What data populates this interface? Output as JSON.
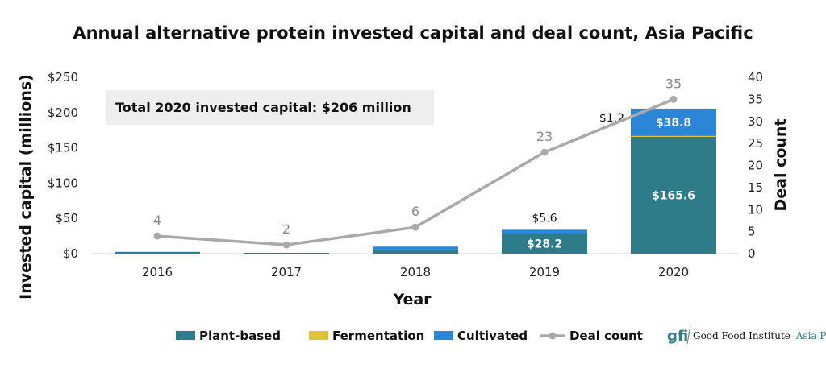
{
  "colors": {
    "plant_based": "#2e7b8a",
    "fermentation": "#e2c23a",
    "cultivated": "#2c86d6",
    "deal_count": "#a9a9a9",
    "annotation_bg": "#eeeeee"
  },
  "chart_data": {
    "type": "bar",
    "title": "Annual alternative protein invested capital and deal count, Asia Pacific",
    "xlabel": "Year",
    "ylabel": "Invested capital (millions)",
    "y2label": "Deal count",
    "categories": [
      "2016",
      "2017",
      "2018",
      "2019",
      "2020"
    ],
    "ylim": [
      0,
      250
    ],
    "y2lim": [
      0,
      40
    ],
    "yticks": [
      "$0",
      "$50",
      "$100",
      "$150",
      "$200",
      "$250"
    ],
    "y2ticks": [
      "0",
      "5",
      "10",
      "15",
      "20",
      "25",
      "30",
      "35",
      "40"
    ],
    "stacked": true,
    "series": [
      {
        "name": "Plant-based",
        "values": [
          2.5,
          1.2,
          6.5,
          28.2,
          165.6
        ],
        "labels": [
          "",
          "",
          "",
          "$28.2",
          "$165.6"
        ],
        "label_position": "inside"
      },
      {
        "name": "Fermentation",
        "values": [
          0,
          0,
          0,
          0,
          1.2
        ],
        "labels": [
          "",
          "",
          "",
          "",
          "$1.2"
        ],
        "label_position": "outside-left"
      },
      {
        "name": "Cultivated",
        "values": [
          0,
          0,
          3.5,
          5.6,
          38.8
        ],
        "labels": [
          "",
          "",
          "",
          "$5.6",
          "$38.8"
        ],
        "label_position": "inside-or-above"
      }
    ],
    "line_series": {
      "name": "Deal count",
      "axis": "secondary",
      "values": [
        4,
        2,
        6,
        23,
        35
      ],
      "labels": [
        "4",
        "2",
        "6",
        "23",
        "35"
      ]
    },
    "annotation": "Total 2020 invested capital: $206 million",
    "legend": {
      "position": "bottom",
      "items": [
        "Plant-based",
        "Fermentation",
        "Cultivated",
        "Deal count"
      ]
    },
    "grid": false
  },
  "logo": {
    "mark": "gfi",
    "name": "Good Food Institute",
    "region": "Asia Pacific."
  }
}
